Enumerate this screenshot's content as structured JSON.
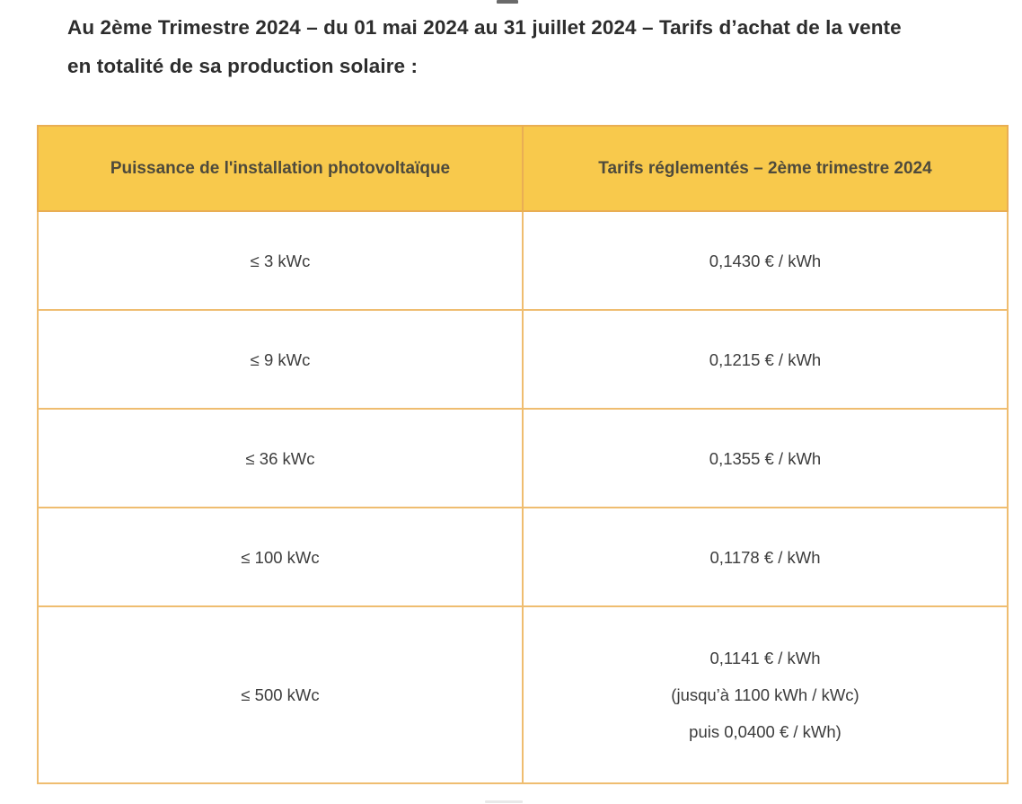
{
  "heading": {
    "line1": "Au 2ème Trimestre 2024 – du 01 mai 2024 au 31 juillet 2024 – Tarifs d’achat de la vente",
    "line2": "en totalité de sa production solaire :"
  },
  "table": {
    "columns": {
      "puissance": "Puissance de l'installation photovoltaïque",
      "tarifs": "Tarifs réglementés – 2ème trimestre 2024"
    },
    "rows": [
      {
        "puissance": "≤ 3 kWc",
        "tarif_lines": [
          "0,1430 € / kWh"
        ]
      },
      {
        "puissance": "≤ 9 kWc",
        "tarif_lines": [
          "0,1215 € / kWh"
        ]
      },
      {
        "puissance": "≤ 36 kWc",
        "tarif_lines": [
          "0,1355 € / kWh"
        ]
      },
      {
        "puissance": "≤ 100 kWc",
        "tarif_lines": [
          "0,1178 € / kWh"
        ]
      },
      {
        "puissance": "≤ 500 kWc",
        "tarif_lines": [
          "0,1141 € / kWh",
          "(jusqu’à 1100 kWh / kWc)",
          "puis 0,0400 € / kWh)"
        ]
      }
    ],
    "colors": {
      "header_bg": "#F8C94C",
      "border": "#EFBD70",
      "header_text": "#4E4A3C",
      "cell_text": "#3C3C3C"
    }
  }
}
